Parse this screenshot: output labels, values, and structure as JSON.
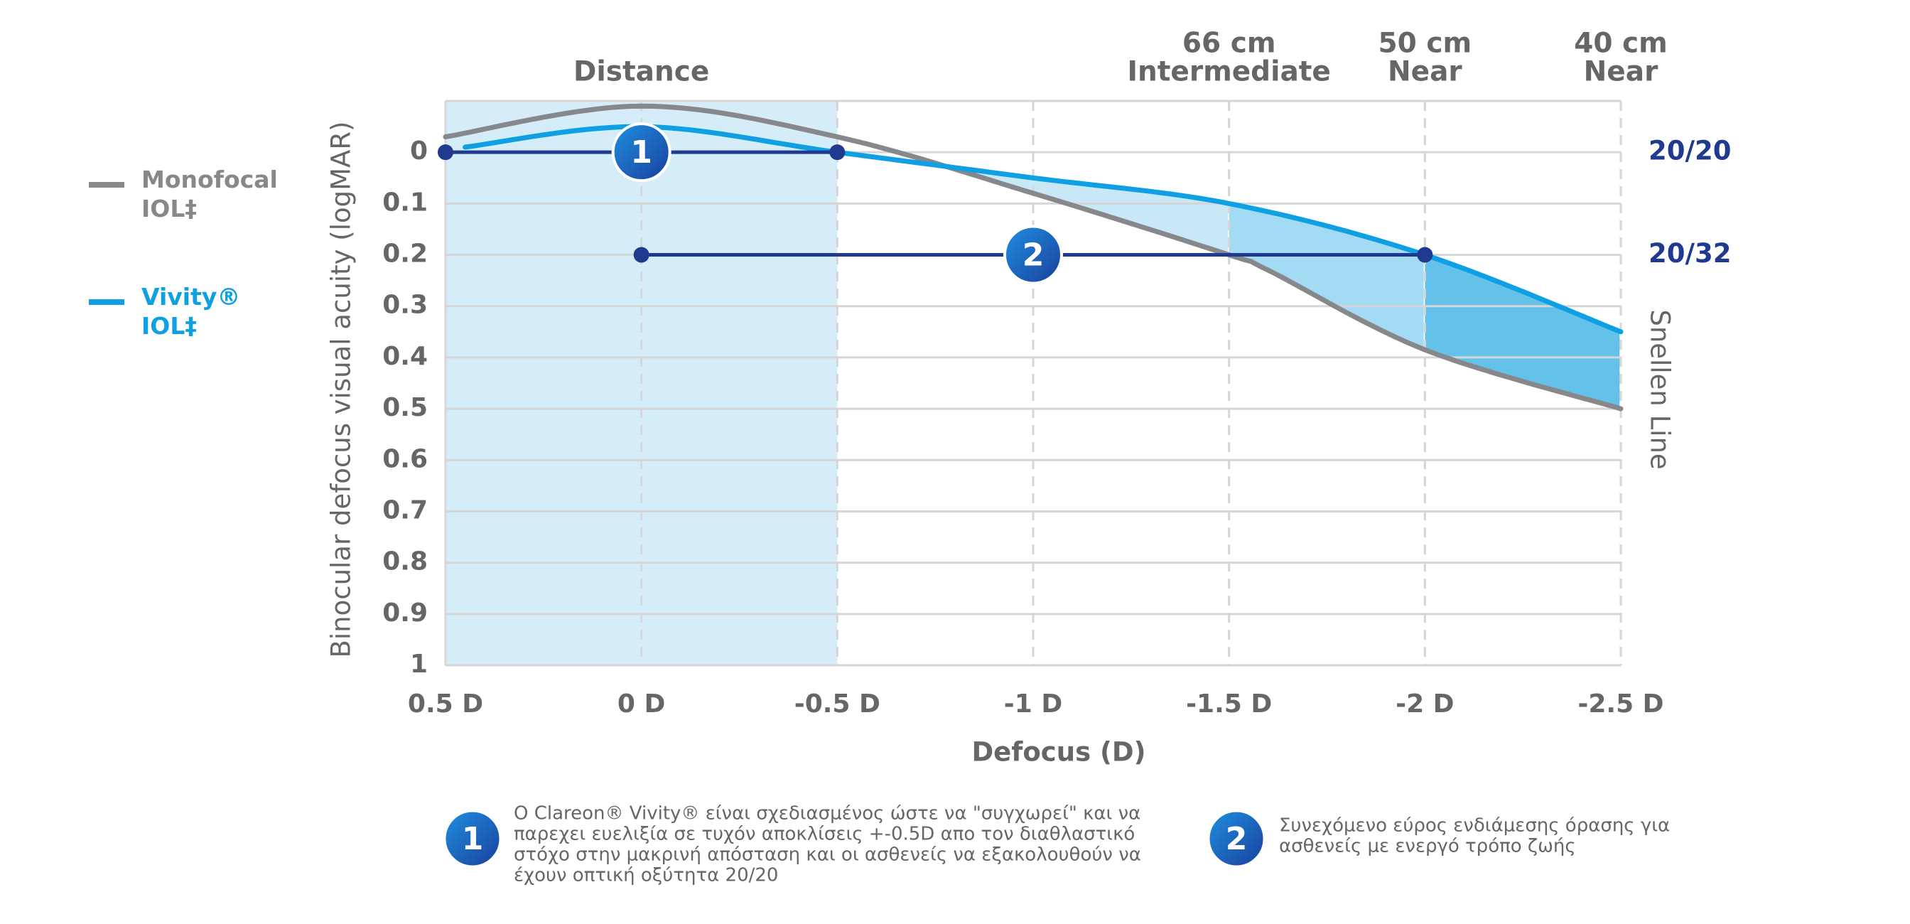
{
  "chart_data": {
    "type": "line",
    "y_axis_label": "Binocular defocus visual acuity (logMAR)",
    "x_axis_label": "Defocus (D)",
    "right_axis_label": "Snellen Line",
    "xlim": [
      0.5,
      -2.5
    ],
    "xticks": [
      {
        "value": 0.5,
        "label": "0.5 D"
      },
      {
        "value": 0,
        "label": "0 D"
      },
      {
        "value": -0.5,
        "label": "-0.5 D"
      },
      {
        "value": -1,
        "label": "-1 D"
      },
      {
        "value": -1.5,
        "label": "-1.5 D"
      },
      {
        "value": -2,
        "label": "-2 D"
      },
      {
        "value": -2.5,
        "label": "-2.5 D"
      }
    ],
    "ylim": [
      -0.1,
      1
    ],
    "y_inverted": true,
    "yticks": [
      0,
      0.1,
      0.2,
      0.3,
      0.4,
      0.5,
      0.6,
      0.7,
      0.8,
      0.9,
      1
    ],
    "grid": true,
    "series": [
      {
        "name": "Monofocal IOL‡",
        "color": "#86888b",
        "x": [
          0.5,
          0,
          -0.5,
          -1,
          -1.5,
          -1.6,
          -2,
          -2.5
        ],
        "values": [
          -0.03,
          -0.09,
          -0.03,
          0.08,
          0.2,
          0.23,
          0.385,
          0.5
        ]
      },
      {
        "name": "Vivity® IOL‡",
        "color": "#0fa0e4",
        "x": [
          0.45,
          0,
          -0.5,
          -1,
          -1.5,
          -2,
          -2.5
        ],
        "values": [
          -0.01,
          -0.05,
          0,
          0.05,
          0.1,
          0.2,
          0.35
        ]
      }
    ],
    "distance_band": {
      "x": [
        0.5,
        -0.5
      ],
      "color": "#d5edf9"
    },
    "between_bands": [
      {
        "x": [
          -0.5,
          -1.5
        ],
        "color": "#c8e8f8"
      },
      {
        "x": [
          -1.5,
          -2
        ],
        "color": "#a3dbf4"
      },
      {
        "x": [
          -2,
          -2.5
        ],
        "color": "#64c1ea"
      }
    ],
    "top_labels": [
      {
        "x": 0,
        "lines": [
          "Distance"
        ]
      },
      {
        "x": -1.5,
        "lines": [
          "66 cm",
          "Intermediate"
        ]
      },
      {
        "x": -2,
        "lines": [
          "50 cm",
          "Near"
        ]
      },
      {
        "x": -2.5,
        "lines": [
          "40 cm",
          "Near"
        ]
      }
    ],
    "ranges": [
      {
        "label": "1",
        "x": [
          0.5,
          -0.5
        ],
        "y": 0,
        "badge_x": 0
      },
      {
        "label": "2",
        "x": [
          0,
          -2
        ],
        "y": 0.2,
        "badge_x": -1
      }
    ],
    "right_labels": [
      {
        "y": 0,
        "label": "20/20"
      },
      {
        "y": 0.2,
        "label": "20/32"
      }
    ],
    "range_color": "#1f3a8f"
  },
  "footnotes": [
    {
      "label": "1",
      "lines": [
        "Ο Clareon® Vivity® είναι σχεδιασμένος ώστε να \"συγχωρεί\" και να",
        "παρεχει ευελιξία σε τυχόν αποκλίσεις +-0.5D απο τον διαθλαστικό",
        "στόχο στην μακρινή απόσταση και οι ασθενείς να εξακολουθούν να",
        "έχουν οπτική οξύτητα 20/20"
      ]
    },
    {
      "label": "2",
      "lines": [
        "Συνεχόμενο εύρος ενδιάμεσης όρασης για",
        "ασθενείς με ενεργό τρόπο ζωής"
      ]
    }
  ]
}
